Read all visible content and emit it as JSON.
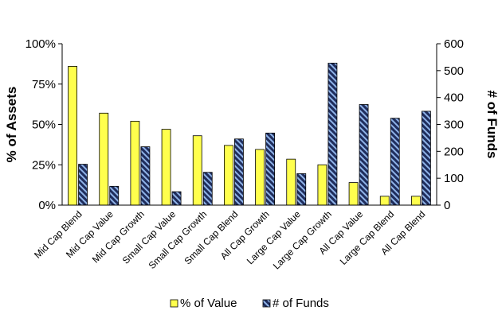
{
  "chart_data": {
    "type": "bar",
    "categories": [
      "Mid Cap Blend",
      "Mid Cap Value",
      "Mid Cap Growth",
      "Small Cap Value",
      "Small Cap Growth",
      "Small Cap Blend",
      "All Cap Growth",
      "Large Cap Value",
      "Large Cap Growth",
      "All Cap Value",
      "Large Cap Blend",
      "All Cap Blend"
    ],
    "series": [
      {
        "name": "% of Value",
        "axis": "left",
        "color": "#ffff4d",
        "values": [
          86,
          57,
          52,
          47,
          43,
          37,
          34.5,
          28.5,
          25,
          14,
          5.5,
          5.5
        ]
      },
      {
        "name": "# of Funds",
        "axis": "right",
        "color": "#1f2d5c",
        "pattern": "diagonal-stripes",
        "stripe_color": "#8fb3e8",
        "values": [
          152,
          70,
          217,
          50,
          122,
          246,
          268,
          117,
          528,
          374,
          323,
          349
        ]
      }
    ],
    "ylabel_left": "% of Assets",
    "ylabel_right": "# of Funds",
    "ylim_left": [
      0,
      100
    ],
    "ylim_right": [
      0,
      600
    ],
    "yticks_left": [
      "0%",
      "25%",
      "50%",
      "75%",
      "100%"
    ],
    "yticks_right": [
      "0",
      "100",
      "200",
      "300",
      "400",
      "500",
      "600"
    ],
    "legend": [
      "% of Value",
      "# of Funds"
    ],
    "legend_position": "bottom",
    "grid": false
  }
}
